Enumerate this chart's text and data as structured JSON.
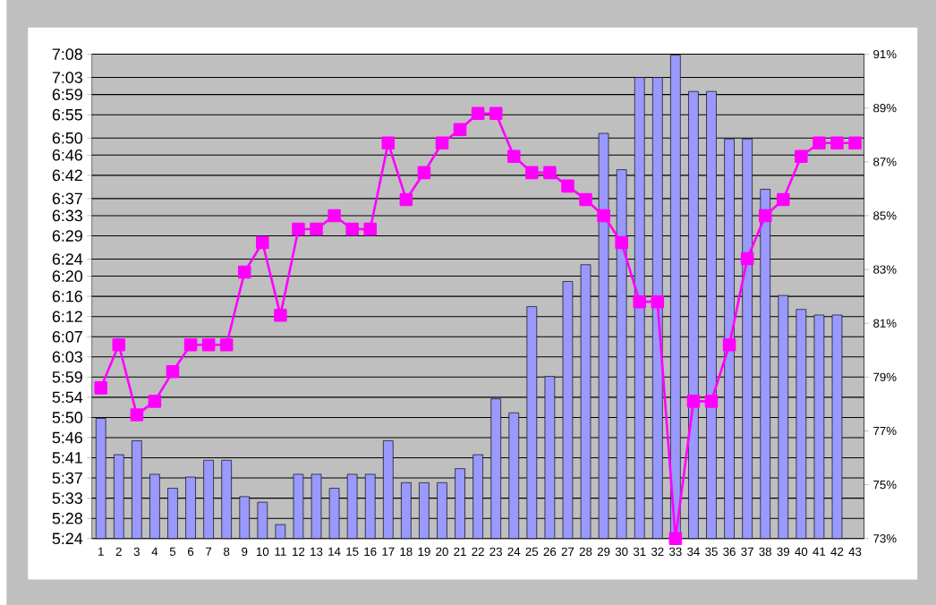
{
  "chart_data": {
    "type": "bar",
    "categories": [
      "1",
      "2",
      "3",
      "4",
      "5",
      "6",
      "7",
      "8",
      "9",
      "10",
      "11",
      "12",
      "13",
      "14",
      "15",
      "16",
      "17",
      "18",
      "19",
      "20",
      "21",
      "22",
      "23",
      "24",
      "25",
      "26",
      "27",
      "28",
      "29",
      "30",
      "31",
      "32",
      "33",
      "34",
      "35",
      "36",
      "37",
      "38",
      "39",
      "40",
      "41",
      "42",
      "43"
    ],
    "series": [
      {
        "color": "#9999ff",
        "values": [
          5.83,
          5.7,
          5.75,
          5.63,
          5.58,
          5.62,
          5.68,
          5.68,
          5.55,
          5.53,
          5.45,
          5.63,
          5.63,
          5.58,
          5.63,
          5.63,
          5.75,
          5.6,
          5.6,
          5.6,
          5.65,
          5.7,
          5.9,
          5.85,
          6.23,
          5.98,
          6.32,
          6.38,
          6.85,
          6.72,
          7.05,
          7.05,
          7.13,
          7.0,
          7.0,
          6.83,
          6.83,
          6.65,
          6.27,
          6.22,
          6.2,
          6.2,
          null
        ]
      },
      {
        "type": "line",
        "axis": "y2",
        "color": "#ff00ff",
        "values": [
          78.6,
          80.2,
          77.6,
          78.1,
          79.2,
          80.2,
          80.2,
          80.2,
          82.9,
          84.0,
          81.3,
          84.5,
          84.5,
          85.0,
          84.5,
          84.5,
          87.7,
          85.6,
          86.6,
          87.7,
          88.2,
          88.8,
          88.8,
          87.2,
          86.6,
          86.6,
          86.1,
          85.6,
          85.0,
          84.0,
          81.8,
          81.8,
          73.0,
          78.1,
          78.1,
          80.2,
          83.4,
          85.0,
          85.6,
          87.2,
          87.7,
          87.7,
          87.7
        ]
      }
    ],
    "ylim": [
      5.4,
      7.1333
    ],
    "yticks": [
      {
        "value": 5.4,
        "label": "5:24"
      },
      {
        "value": 5.4722,
        "label": "5:28"
      },
      {
        "value": 5.5444,
        "label": "5:33"
      },
      {
        "value": 5.6167,
        "label": "5:37"
      },
      {
        "value": 5.6889,
        "label": "5:41"
      },
      {
        "value": 5.7611,
        "label": "5:46"
      },
      {
        "value": 5.8333,
        "label": "5:50"
      },
      {
        "value": 5.9056,
        "label": "5:54"
      },
      {
        "value": 5.9778,
        "label": "5:59"
      },
      {
        "value": 6.05,
        "label": "6:03"
      },
      {
        "value": 6.1222,
        "label": "6:07"
      },
      {
        "value": 6.1944,
        "label": "6:12"
      },
      {
        "value": 6.2667,
        "label": "6:16"
      },
      {
        "value": 6.3389,
        "label": "6:20"
      },
      {
        "value": 6.4,
        "label": "6:24"
      },
      {
        "value": 6.4833,
        "label": "6:29"
      },
      {
        "value": 6.5556,
        "label": "6:33"
      },
      {
        "value": 6.6167,
        "label": "6:37"
      },
      {
        "value": 6.7,
        "label": "6:42"
      },
      {
        "value": 6.7722,
        "label": "6:46"
      },
      {
        "value": 6.8333,
        "label": "6:50"
      },
      {
        "value": 6.9167,
        "label": "6:55"
      },
      {
        "value": 6.9889,
        "label": "6:59"
      },
      {
        "value": 7.05,
        "label": "7:03"
      },
      {
        "value": 7.1333,
        "label": "7:08"
      }
    ],
    "y2lim": [
      73,
      91
    ],
    "y2ticks": [
      {
        "value": 73,
        "label": "73%"
      },
      {
        "value": 75,
        "label": "75%"
      },
      {
        "value": 77,
        "label": "77%"
      },
      {
        "value": 79,
        "label": "79%"
      },
      {
        "value": 81,
        "label": "81%"
      },
      {
        "value": 83,
        "label": "83%"
      },
      {
        "value": 85,
        "label": "85%"
      },
      {
        "value": 87,
        "label": "87%"
      },
      {
        "value": 89,
        "label": "89%"
      },
      {
        "value": 91,
        "label": "91%"
      }
    ],
    "grid": "y",
    "marker": "square"
  }
}
